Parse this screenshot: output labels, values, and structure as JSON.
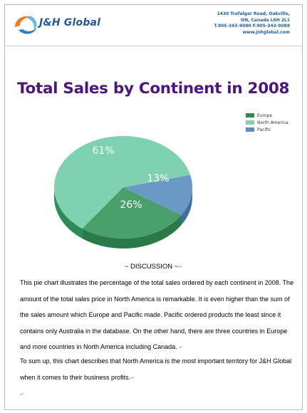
{
  "header": {
    "company_name": "J&H Global",
    "address_lines": [
      "1430 Trafalgar Road, Oakville,",
      "ON, Canada L6H 2L1",
      "T.905-343-9080   F.905-343-9088",
      "www.jnhglobal.com"
    ]
  },
  "chart_data": {
    "type": "pie",
    "title": "Total Sales by Continent in 2008",
    "categories": [
      "Europe",
      "North America",
      "Pacific"
    ],
    "values": [
      26,
      61,
      13
    ],
    "labels": [
      "26%",
      "61%",
      "13%"
    ],
    "colors": {
      "Europe": "#4aa06a",
      "North America": "#7fd2b0",
      "Pacific": "#6a99c6"
    },
    "legend_position": "right"
  },
  "discussion": {
    "title": "~ DISCUSSION ~",
    "paragraph1": "This pie chart illustrates the percentage of the total sales ordered by each continent in 2008. The amount of the total sales price in North America is remarkable. It is even higher than the sum of the sales amount which Europe and Pacific made. Pacific ordered products the least since it contains only Australia in the database. On the other hand, there are three countries in Europe and more countries in North America including Canada.",
    "paragraph2": "To sum up, this chart describes that North America is the most important territory for J&H Global when it comes to their business profits."
  }
}
